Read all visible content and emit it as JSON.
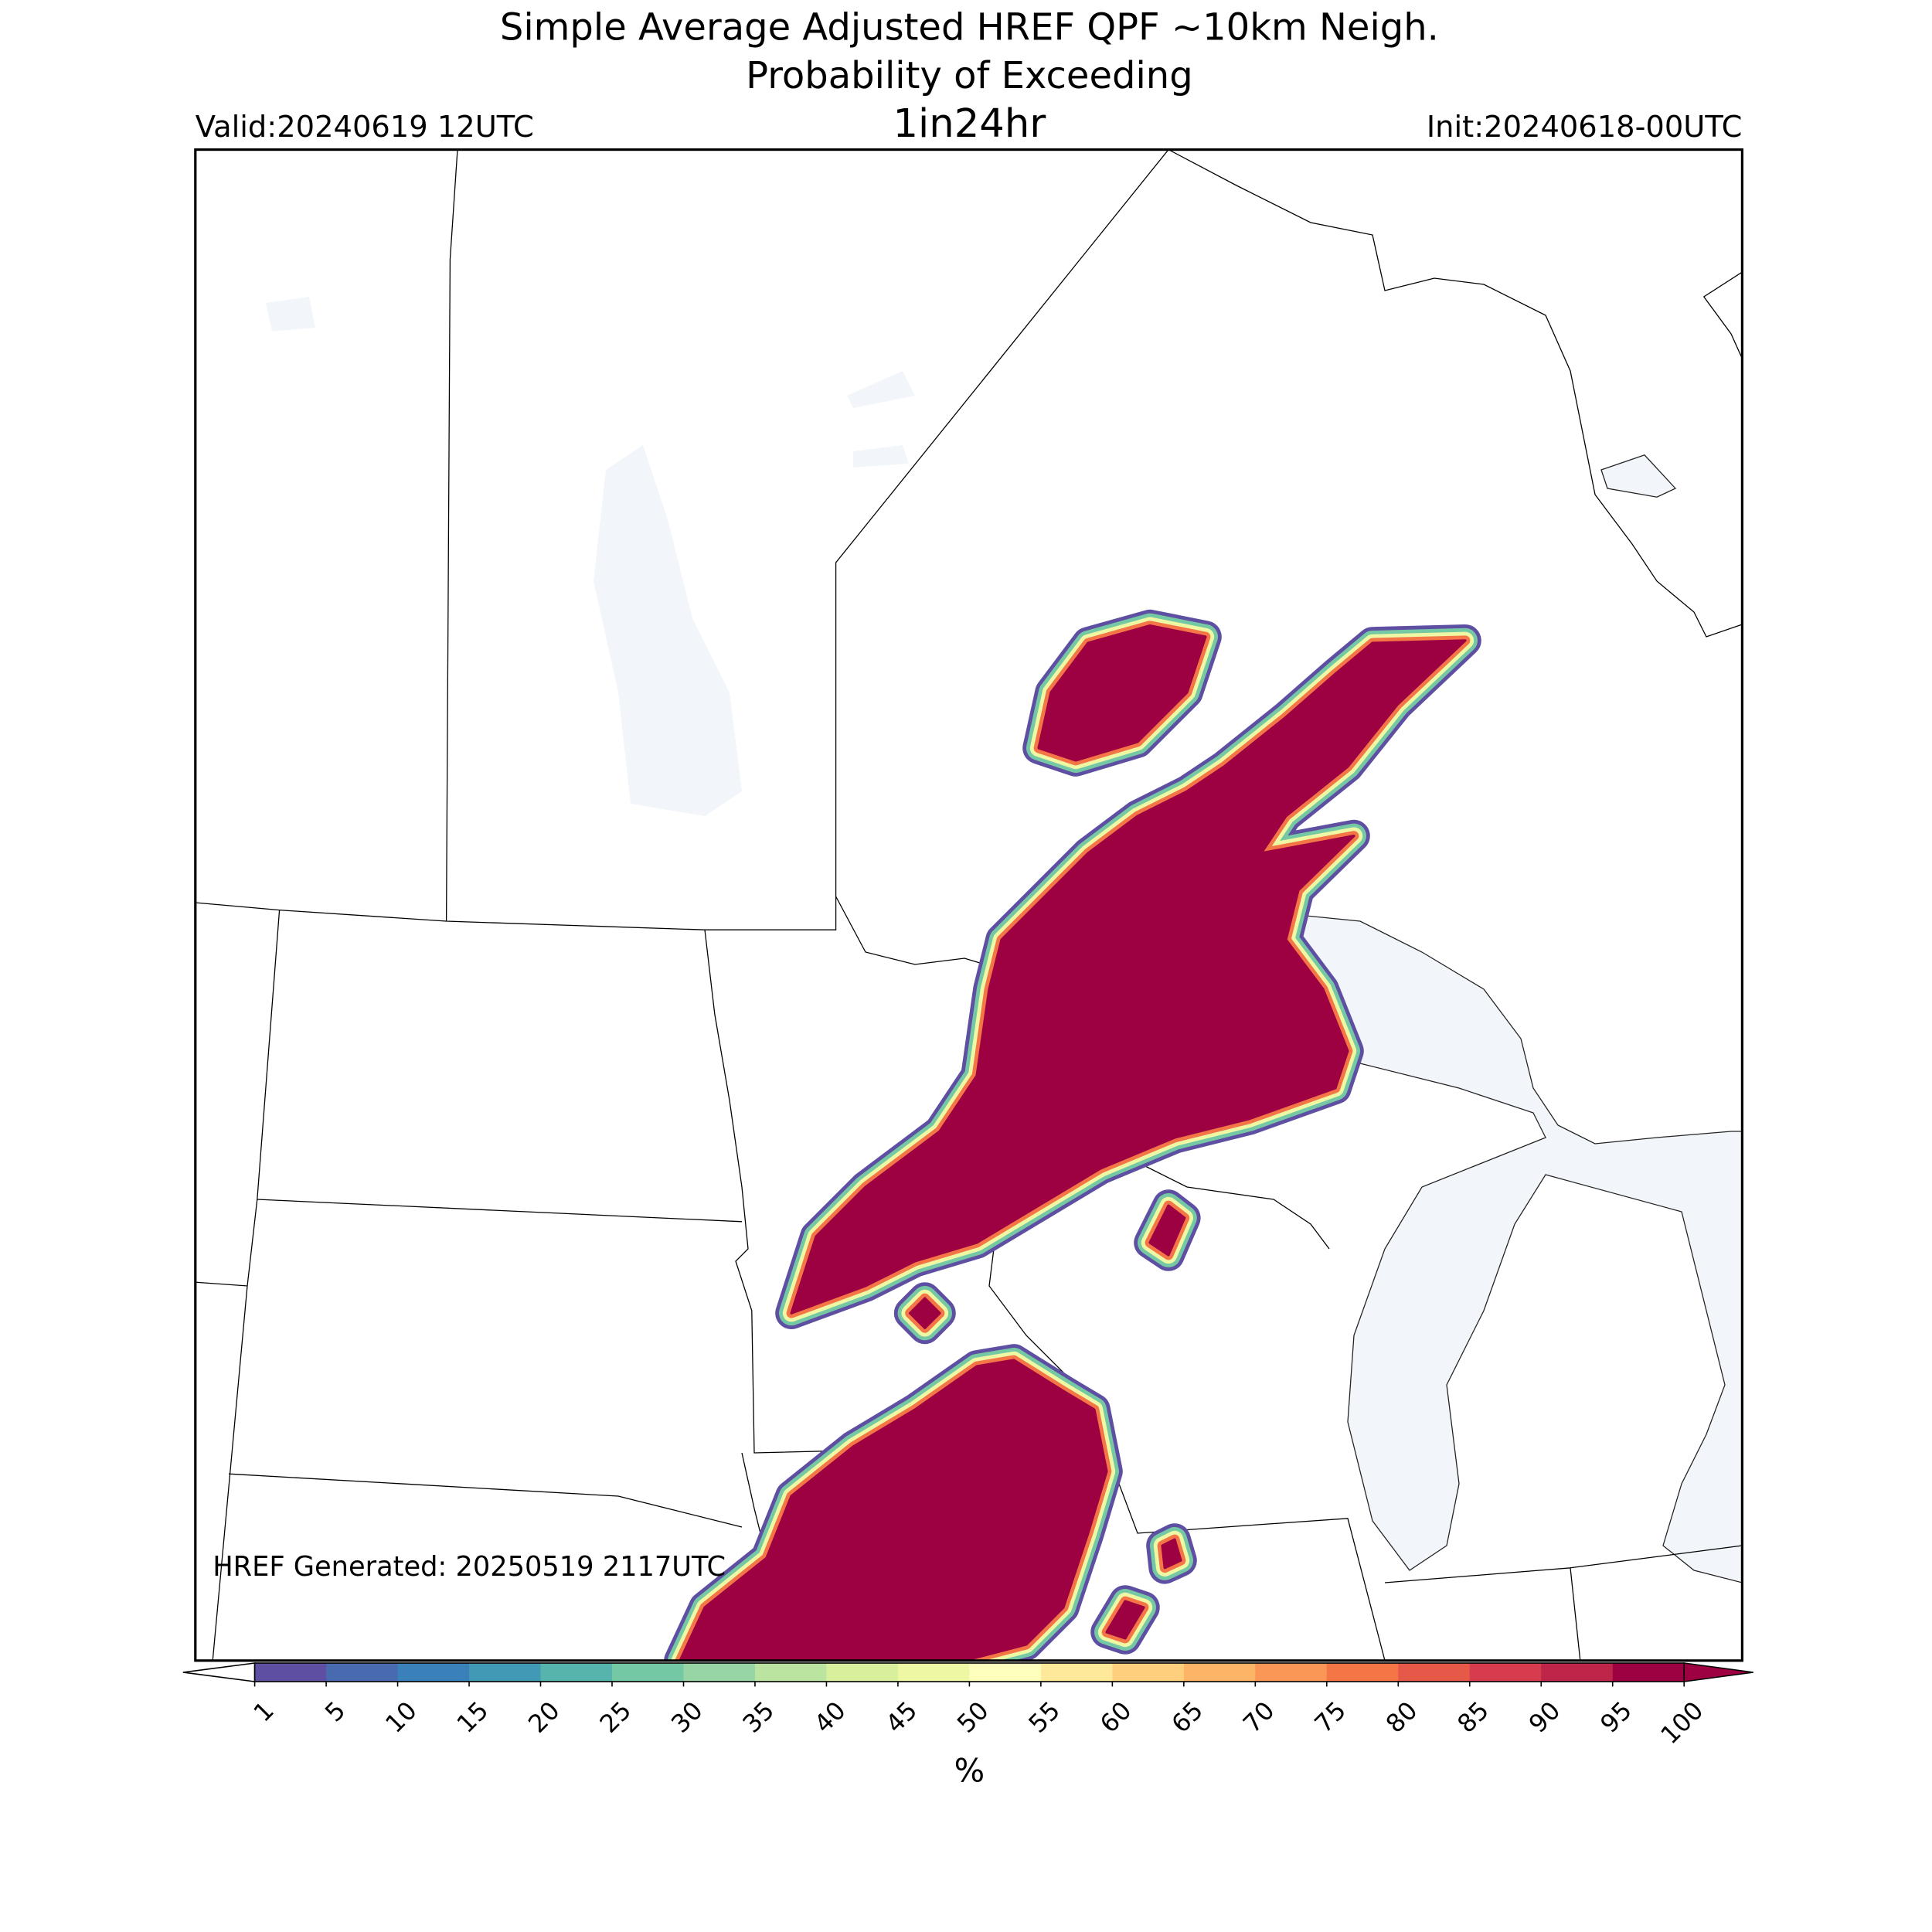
{
  "header": {
    "title": "Simple Average Adjusted HREF QPF ~10km Neigh.",
    "subtitle": "Probability of Exceeding",
    "threshold": "1in24hr",
    "valid": "Valid:20240619 12UTC",
    "init": "Init:20240618-00UTC"
  },
  "note": "HREF Generated: 20250519 2117UTC",
  "colorbar": {
    "label": "%",
    "ticks": [
      1,
      5,
      10,
      15,
      20,
      25,
      30,
      35,
      40,
      45,
      50,
      55,
      60,
      65,
      70,
      75,
      80,
      85,
      90,
      95,
      100
    ],
    "colors": [
      "#5e4fa2",
      "#486aae",
      "#3a80b9",
      "#4199b6",
      "#57b4ad",
      "#75c8a4",
      "#98d5a4",
      "#bbe4a0",
      "#d8ef9b",
      "#eef8a4",
      "#fefebd",
      "#fee99a",
      "#fed07e",
      "#fdb466",
      "#fa9656",
      "#f47647",
      "#e65848",
      "#d73c4e",
      "#bf2449",
      "#9e0142"
    ],
    "under_color": "#ffffff",
    "over_color": "#9e0142"
  }
}
